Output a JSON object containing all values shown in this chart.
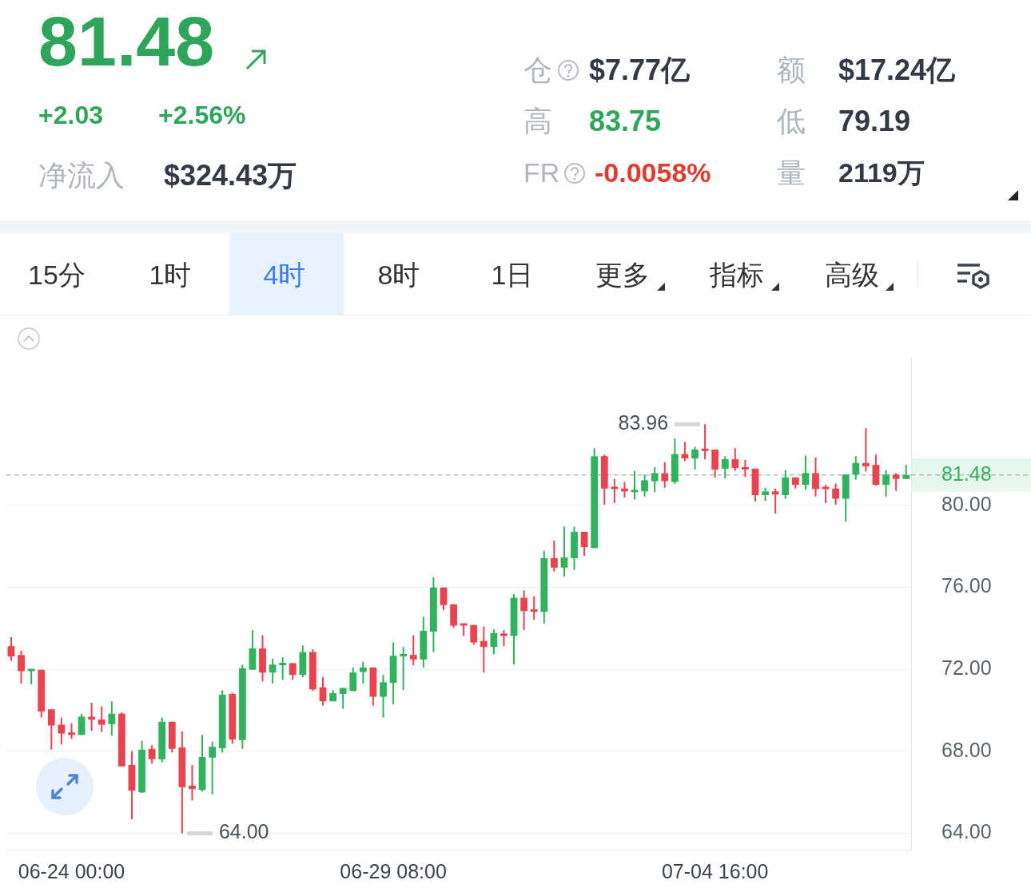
{
  "chart_data": {
    "type": "candlestick",
    "title": "81.48",
    "categories": [
      null,
      null,
      null,
      null,
      null,
      null,
      "06-24 00:00",
      null,
      null,
      null,
      null,
      null,
      null,
      null,
      null,
      null,
      null,
      null,
      null,
      null,
      null,
      null,
      null,
      null,
      null,
      null,
      null,
      null,
      null,
      null,
      null,
      null,
      null,
      null,
      null,
      null,
      null,
      null,
      "06-29 08:00",
      null,
      null,
      null,
      null,
      null,
      null,
      null,
      null,
      null,
      null,
      null,
      null,
      null,
      null,
      null,
      null,
      null,
      null,
      null,
      null,
      null,
      null,
      null,
      null,
      null,
      null,
      null,
      null,
      null,
      null,
      null,
      "07-04 16:00",
      null,
      null,
      null,
      null,
      null,
      null,
      null,
      null,
      null,
      null,
      null,
      null,
      null,
      null,
      null,
      null,
      null,
      null,
      null
    ],
    "ohlc": [
      [
        73.13,
        73.56,
        72.41,
        72.63
      ],
      [
        72.7,
        72.91,
        71.3,
        71.91
      ],
      [
        71.91,
        71.98,
        71.27,
        71.98
      ],
      [
        71.98,
        71.98,
        69.65,
        69.94
      ],
      [
        70.05,
        70.05,
        68.08,
        69.26
      ],
      [
        69.3,
        69.65,
        68.33,
        68.87
      ],
      [
        68.9,
        69.37,
        68.62,
        68.8
      ],
      [
        68.8,
        69.83,
        68.8,
        69.69
      ],
      [
        69.69,
        70.37,
        69.01,
        69.55
      ],
      [
        69.55,
        70.19,
        68.94,
        69.3
      ],
      [
        69.33,
        70.44,
        68.76,
        69.83
      ],
      [
        69.83,
        69.9,
        67.26,
        67.26
      ],
      [
        67.33,
        68.01,
        64.68,
        66.08
      ],
      [
        66.0,
        68.51,
        65.97,
        68.08
      ],
      [
        68.12,
        68.29,
        67.4,
        67.61
      ],
      [
        67.61,
        69.65,
        67.47,
        69.44
      ],
      [
        69.44,
        69.44,
        67.94,
        68.12
      ],
      [
        68.19,
        68.97,
        64.0,
        66.25
      ],
      [
        66.33,
        67.33,
        65.61,
        66.15
      ],
      [
        66.11,
        68.8,
        66.04,
        67.72
      ],
      [
        67.69,
        68.47,
        65.9,
        68.22
      ],
      [
        68.15,
        70.98,
        67.94,
        70.76
      ],
      [
        70.8,
        70.85,
        68.37,
        68.58
      ],
      [
        68.55,
        72.23,
        68.12,
        72.05
      ],
      [
        71.98,
        73.91,
        71.98,
        73.02
      ],
      [
        73.02,
        73.66,
        71.41,
        71.84
      ],
      [
        71.84,
        72.52,
        71.3,
        72.23
      ],
      [
        72.2,
        72.59,
        71.48,
        72.3
      ],
      [
        72.3,
        72.3,
        71.48,
        71.73
      ],
      [
        71.73,
        73.16,
        71.62,
        72.84
      ],
      [
        72.84,
        72.98,
        70.94,
        71.02
      ],
      [
        71.12,
        71.62,
        70.23,
        70.44
      ],
      [
        70.44,
        70.98,
        70.44,
        70.84
      ],
      [
        70.8,
        71.09,
        70.08,
        71.09
      ],
      [
        70.94,
        72.09,
        70.94,
        71.84
      ],
      [
        71.87,
        72.37,
        71.3,
        72.09
      ],
      [
        72.09,
        72.09,
        70.23,
        70.66
      ],
      [
        70.66,
        71.73,
        69.65,
        71.37
      ],
      [
        71.34,
        73.31,
        70.3,
        72.66
      ],
      [
        72.63,
        73.09,
        70.98,
        72.73
      ],
      [
        72.7,
        73.66,
        72.2,
        72.48
      ],
      [
        72.48,
        74.56,
        72.09,
        73.88
      ],
      [
        73.84,
        76.49,
        72.84,
        75.99
      ],
      [
        75.99,
        75.99,
        74.88,
        75.13
      ],
      [
        75.17,
        75.17,
        74.02,
        74.13
      ],
      [
        74.2,
        74.2,
        73.63,
        74.13
      ],
      [
        74.16,
        74.16,
        73.2,
        73.31
      ],
      [
        73.38,
        74.09,
        71.84,
        73.09
      ],
      [
        73.09,
        73.95,
        72.73,
        73.77
      ],
      [
        73.74,
        73.91,
        73.13,
        73.63
      ],
      [
        73.63,
        75.67,
        72.23,
        75.49
      ],
      [
        75.49,
        75.85,
        73.91,
        74.84
      ],
      [
        74.88,
        75.56,
        74.42,
        74.81
      ],
      [
        74.81,
        77.78,
        74.24,
        77.42
      ],
      [
        77.42,
        78.28,
        76.78,
        76.96
      ],
      [
        76.96,
        78.96,
        76.53,
        77.46
      ],
      [
        77.42,
        78.96,
        76.85,
        78.71
      ],
      [
        78.71,
        78.71,
        77.53,
        77.96
      ],
      [
        77.92,
        82.79,
        77.92,
        82.4
      ],
      [
        82.4,
        82.47,
        80.03,
        80.82
      ],
      [
        80.86,
        81.29,
        80.11,
        80.79
      ],
      [
        80.82,
        81.14,
        80.39,
        80.68
      ],
      [
        80.64,
        81.68,
        80.29,
        80.71
      ],
      [
        80.68,
        81.5,
        80.43,
        81.22
      ],
      [
        81.18,
        81.86,
        80.64,
        81.57
      ],
      [
        81.57,
        82.11,
        80.86,
        81.18
      ],
      [
        81.14,
        83.26,
        81.04,
        82.5
      ],
      [
        82.5,
        83.08,
        82.15,
        82.29
      ],
      [
        82.29,
        82.86,
        81.75,
        82.72
      ],
      [
        82.72,
        83.96,
        82.25,
        82.65
      ],
      [
        82.72,
        82.72,
        81.36,
        81.75
      ],
      [
        81.79,
        82.4,
        81.32,
        82.25
      ],
      [
        82.25,
        82.79,
        81.68,
        81.82
      ],
      [
        81.86,
        82.22,
        81.39,
        81.75
      ],
      [
        81.79,
        81.79,
        80.18,
        80.5
      ],
      [
        80.5,
        80.86,
        80.21,
        80.68
      ],
      [
        80.68,
        80.82,
        79.6,
        80.53
      ],
      [
        80.5,
        81.72,
        80.32,
        81.36
      ],
      [
        81.36,
        81.36,
        80.82,
        81.0
      ],
      [
        81.0,
        82.43,
        80.75,
        81.57
      ],
      [
        81.57,
        82.33,
        80.43,
        80.79
      ],
      [
        80.82,
        81.0,
        80.11,
        80.79
      ],
      [
        80.82,
        81.07,
        80.03,
        80.32
      ],
      [
        80.32,
        81.5,
        79.21,
        81.5
      ],
      [
        81.5,
        82.4,
        81.25,
        82.07
      ],
      [
        82.07,
        83.76,
        81.65,
        81.9
      ],
      [
        81.97,
        82.47,
        80.97,
        81.0
      ],
      [
        81.0,
        81.72,
        80.43,
        81.5
      ],
      [
        81.5,
        81.57,
        80.71,
        81.29
      ],
      [
        81.29,
        81.97,
        81.29,
        81.48
      ]
    ],
    "colors": [
      "#e8434f",
      "#e8434f",
      "#2fb35c",
      "#e8434f",
      "#e8434f",
      "#e8434f",
      "#e8434f",
      "#2fb35c",
      "#e8434f",
      "#e8434f",
      "#2fb35c",
      "#e8434f",
      "#e8434f",
      "#2fb35c",
      "#e8434f",
      "#2fb35c",
      "#e8434f",
      "#e8434f",
      "#e8434f",
      "#2fb35c",
      "#2fb35c",
      "#2fb35c",
      "#e8434f",
      "#2fb35c",
      "#2fb35c",
      "#e8434f",
      "#2fb35c",
      "#2fb35c",
      "#e8434f",
      "#2fb35c",
      "#e8434f",
      "#e8434f",
      "#2fb35c",
      "#2fb35c",
      "#2fb35c",
      "#2fb35c",
      "#e8434f",
      "#2fb35c",
      "#2fb35c",
      "#2fb35c",
      "#e8434f",
      "#2fb35c",
      "#2fb35c",
      "#e8434f",
      "#e8434f",
      "#e8434f",
      "#e8434f",
      "#e8434f",
      "#2fb35c",
      "#e8434f",
      "#2fb35c",
      "#e8434f",
      "#e8434f",
      "#2fb35c",
      "#e8434f",
      "#2fb35c",
      "#2fb35c",
      "#e8434f",
      "#2fb35c",
      "#e8434f",
      "#e8434f",
      "#e8434f",
      "#2fb35c",
      "#2fb35c",
      "#2fb35c",
      "#e8434f",
      "#2fb35c",
      "#e8434f",
      "#2fb35c",
      "#e8434f",
      "#e8434f",
      "#2fb35c",
      "#e8434f",
      "#e8434f",
      "#e8434f",
      "#2fb35c",
      "#e8434f",
      "#2fb35c",
      "#e8434f",
      "#2fb35c",
      "#e8434f",
      "#e8434f",
      "#e8434f",
      "#2fb35c",
      "#2fb35c",
      "#e8434f",
      "#e8434f",
      "#2fb35c",
      "#e8434f",
      "#2fb35c"
    ],
    "ylim": [
      63.2,
      87.2
    ],
    "yticks": [
      {
        "value": 64,
        "label": "64.00"
      },
      {
        "value": 68,
        "label": "68.00"
      },
      {
        "value": 72,
        "label": "72.00"
      },
      {
        "value": 76,
        "label": "76.00"
      },
      {
        "value": 80,
        "label": "80.00"
      }
    ],
    "grid": "y",
    "ref_lines": [
      {
        "axis": "y",
        "value": 81.48,
        "label": "81.48",
        "color": "#9aa0a8",
        "line_style": "dashed"
      }
    ],
    "annotations": [
      "+2.03",
      "+2.56%",
      "净流入",
      "$324.43万",
      "仓",
      "$7.77亿",
      "额",
      "$17.24亿",
      "高",
      "83.75",
      "低",
      "79.19",
      "FR",
      "-0.0058%",
      "量",
      "2119万",
      "15分",
      "1时",
      "4时",
      "8时",
      "1日",
      "更多",
      "指标",
      "高级",
      "83.96",
      "64.00"
    ]
  }
}
